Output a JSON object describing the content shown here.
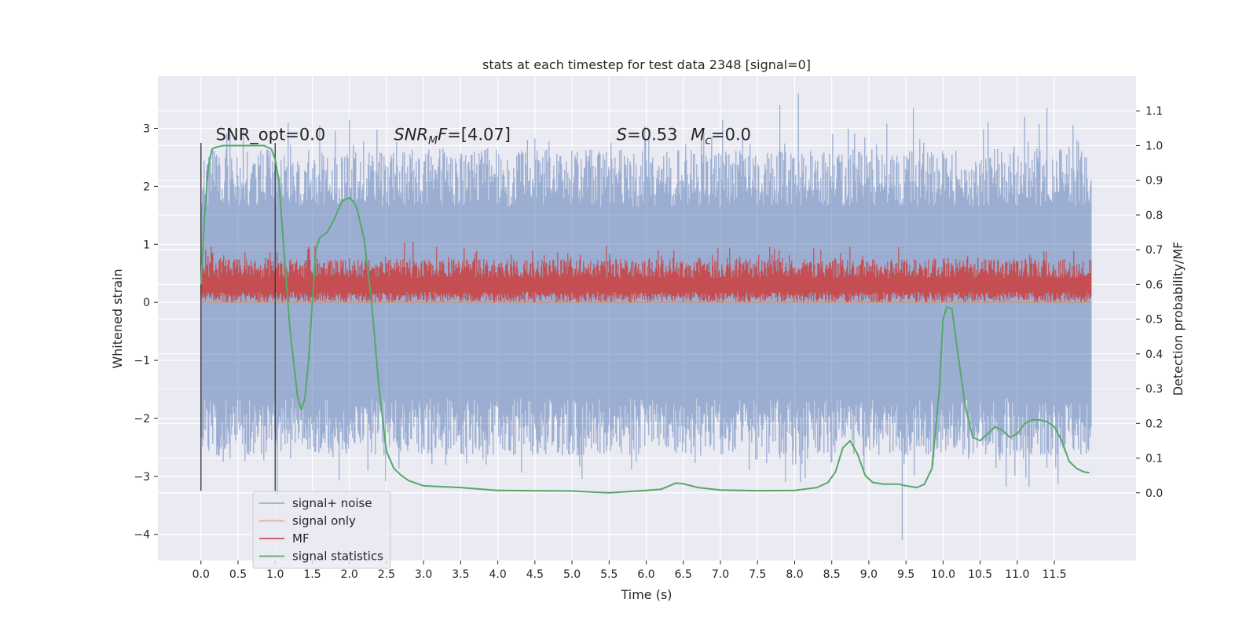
{
  "chart_data": {
    "type": "line",
    "title": "stats at each timestep for test data 2348 [signal=0]",
    "xlabel": "Time (s)",
    "ylabel": "Whitened strain",
    "y2label": "Detection probability/MF",
    "xlim": [
      -0.58,
      12.6
    ],
    "ylim": [
      -4.45,
      3.9
    ],
    "y2lim": [
      -0.195,
      1.2
    ],
    "xticks": [
      "0.0",
      "0.5",
      "1.0",
      "1.5",
      "2.0",
      "2.5",
      "3.0",
      "3.5",
      "4.0",
      "4.5",
      "5.0",
      "5.5",
      "6.0",
      "6.5",
      "7.0",
      "7.5",
      "8.0",
      "8.5",
      "9.0",
      "9.5",
      "10.0",
      "10.5",
      "11.0",
      "11.5"
    ],
    "yticks": [
      "−4",
      "−3",
      "−2",
      "−1",
      "0",
      "1",
      "2",
      "3"
    ],
    "y2ticks": [
      "0.0",
      "0.1",
      "0.2",
      "0.3",
      "0.4",
      "0.5",
      "0.6",
      "0.7",
      "0.8",
      "0.9",
      "1.0",
      "1.1"
    ],
    "grid": true,
    "legend_placement": "lower-left",
    "vlines": [
      {
        "x": 0.0,
        "y_from": -3.25,
        "y_to": 2.75
      },
      {
        "x": 1.0,
        "y_from": -3.25,
        "y_to": 2.75
      }
    ],
    "annotations": {
      "snr_opt": {
        "prefix": "SNR_opt",
        "value": "=0.0",
        "x": 0.2,
        "y": 2.8
      },
      "snr_mf": {
        "base": "SNR",
        "sub": "M",
        "italic_tail": "F",
        "value": "=[4.07]",
        "x": 2.6,
        "y": 2.8
      },
      "stat_s": {
        "sym": "S",
        "value": "=0.53",
        "x": 5.6,
        "y": 2.8
      },
      "mc": {
        "base": "M",
        "sub": "c",
        "value": "=0.0",
        "x": 6.6,
        "y": 2.8
      }
    },
    "series": [
      {
        "name": "signal+ noise",
        "color": "#4c72b0",
        "opacity": 0.5,
        "x_range": [
          0.0,
          12.0
        ],
        "band_lower": -2.2,
        "band_upper": 2.2,
        "peaks": [
          {
            "x": 0.3,
            "y": -2.75
          },
          {
            "x": 0.57,
            "y": 3.0
          },
          {
            "x": 1.03,
            "y": -3.3
          },
          {
            "x": 1.6,
            "y": 3.05
          },
          {
            "x": 2.0,
            "y": 3.15
          },
          {
            "x": 2.25,
            "y": -2.9
          },
          {
            "x": 3.3,
            "y": -2.8
          },
          {
            "x": 4.4,
            "y": 2.8
          },
          {
            "x": 7.3,
            "y": 2.9
          },
          {
            "x": 7.8,
            "y": 3.4
          },
          {
            "x": 8.05,
            "y": 3.6
          },
          {
            "x": 9.45,
            "y": -4.1
          },
          {
            "x": 9.6,
            "y": 3.35
          },
          {
            "x": 11.1,
            "y": 3.2
          },
          {
            "x": 11.4,
            "y": 3.35
          },
          {
            "x": 11.4,
            "y": -2.85
          }
        ]
      },
      {
        "name": "signal only",
        "color": "#dd8452",
        "opacity": 0.6,
        "x": [
          0.0,
          12.0
        ],
        "y": [
          0.0,
          0.0
        ]
      },
      {
        "name": "MF",
        "color": "#c44e52",
        "x_range": [
          0.0,
          12.0
        ],
        "band_lower": 0.0,
        "band_upper": 0.75,
        "center": 0.3
      },
      {
        "name": "signal statistics",
        "color": "#55a868",
        "axis": "y2",
        "x": [
          0.0,
          0.05,
          0.1,
          0.15,
          0.2,
          0.3,
          0.5,
          0.7,
          0.85,
          0.95,
          1.0,
          1.05,
          1.1,
          1.2,
          1.3,
          1.35,
          1.4,
          1.45,
          1.5,
          1.55,
          1.6,
          1.7,
          1.8,
          1.9,
          2.0,
          2.05,
          2.1,
          2.2,
          2.3,
          2.4,
          2.5,
          2.6,
          2.7,
          2.8,
          3.0,
          3.5,
          4.0,
          4.5,
          5.0,
          5.5,
          6.0,
          6.2,
          6.4,
          6.5,
          6.7,
          7.0,
          7.5,
          8.0,
          8.3,
          8.45,
          8.55,
          8.65,
          8.75,
          8.85,
          8.95,
          9.05,
          9.2,
          9.4,
          9.5,
          9.65,
          9.75,
          9.85,
          9.95,
          10.0,
          10.05,
          10.12,
          10.2,
          10.3,
          10.4,
          10.5,
          10.6,
          10.7,
          10.8,
          10.9,
          11.0,
          11.1,
          11.2,
          11.3,
          11.4,
          11.5,
          11.6,
          11.7,
          11.8,
          11.9,
          11.97
        ],
        "y": [
          0.6,
          0.8,
          0.94,
          0.99,
          0.995,
          1.0,
          1.0,
          1.0,
          1.0,
          0.99,
          0.96,
          0.9,
          0.75,
          0.47,
          0.28,
          0.24,
          0.27,
          0.38,
          0.55,
          0.7,
          0.735,
          0.75,
          0.79,
          0.84,
          0.85,
          0.84,
          0.82,
          0.73,
          0.55,
          0.3,
          0.12,
          0.07,
          0.05,
          0.035,
          0.02,
          0.015,
          0.007,
          0.006,
          0.005,
          0.0,
          0.007,
          0.01,
          0.028,
          0.026,
          0.015,
          0.008,
          0.006,
          0.007,
          0.015,
          0.03,
          0.06,
          0.13,
          0.15,
          0.11,
          0.05,
          0.03,
          0.025,
          0.025,
          0.02,
          0.015,
          0.025,
          0.07,
          0.3,
          0.5,
          0.535,
          0.53,
          0.4,
          0.25,
          0.16,
          0.15,
          0.17,
          0.19,
          0.18,
          0.16,
          0.17,
          0.2,
          0.21,
          0.21,
          0.205,
          0.19,
          0.15,
          0.09,
          0.07,
          0.06,
          0.058
        ]
      }
    ]
  }
}
